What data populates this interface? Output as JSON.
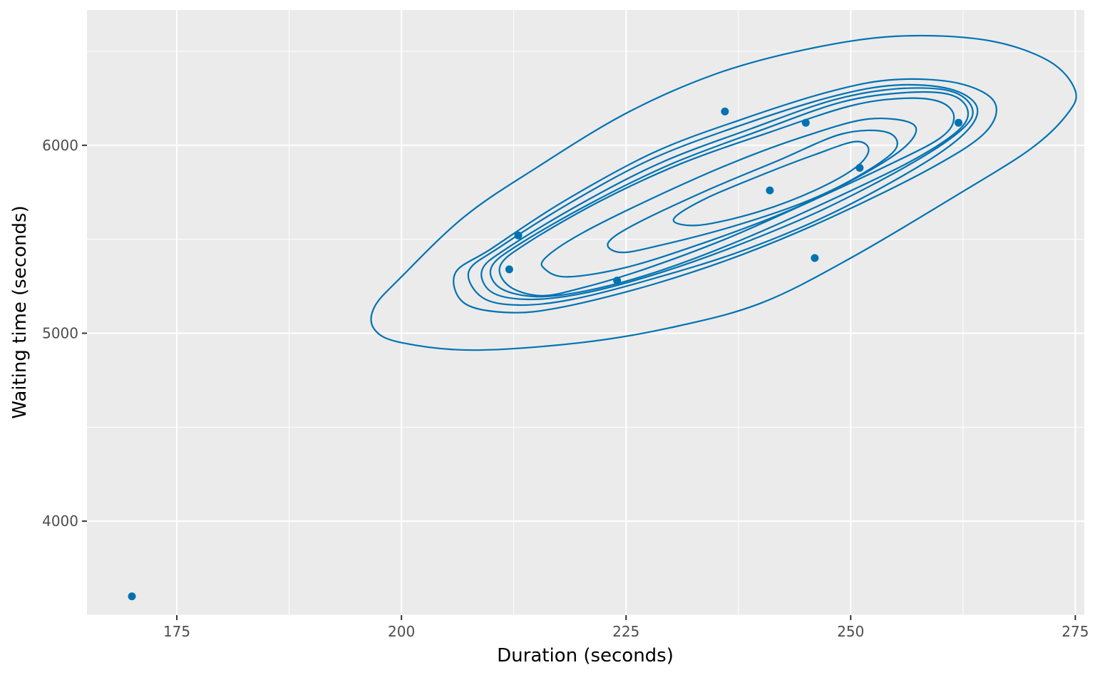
{
  "chart_data": {
    "type": "scatter",
    "subtype": "scatter with 2D density contours",
    "title": "",
    "xlabel": "Duration (seconds)",
    "ylabel": "Waiting time (seconds)",
    "xlim": [
      165,
      276
    ],
    "ylim": [
      3500,
      6720
    ],
    "x_ticks": [
      175,
      200,
      225,
      250,
      275
    ],
    "x_tick_labels": [
      "175",
      "200",
      "225",
      "250",
      "275"
    ],
    "x_minor": [
      187.5,
      212.5,
      237.5,
      262.5
    ],
    "y_ticks": [
      4000,
      5000,
      6000
    ],
    "y_tick_labels": [
      "4000",
      "5000",
      "6000"
    ],
    "y_minor": [
      3500,
      4500,
      5500,
      6500
    ],
    "grid": true,
    "legend": "none",
    "color": "#0072B2",
    "panel_background": "#EBEBEB",
    "points": [
      {
        "x": 170,
        "y": 3600
      },
      {
        "x": 212,
        "y": 5340
      },
      {
        "x": 213,
        "y": 5520
      },
      {
        "x": 224,
        "y": 5280
      },
      {
        "x": 236,
        "y": 6180
      },
      {
        "x": 241,
        "y": 5760
      },
      {
        "x": 245,
        "y": 6120
      },
      {
        "x": 246,
        "y": 5400
      },
      {
        "x": 251,
        "y": 5880
      },
      {
        "x": 262,
        "y": 6120
      }
    ],
    "contours": [
      {
        "level": 1,
        "path": [
          [
            197.0,
            5140
          ],
          [
            200.0,
            5300
          ],
          [
            207.0,
            5620
          ],
          [
            215.0,
            5880
          ],
          [
            225.0,
            6170
          ],
          [
            235.0,
            6380
          ],
          [
            245.0,
            6510
          ],
          [
            255.0,
            6580
          ],
          [
            265.0,
            6560
          ],
          [
            272.0,
            6450
          ],
          [
            275.0,
            6290
          ],
          [
            274.0,
            6160
          ],
          [
            270.0,
            5980
          ],
          [
            262.0,
            5740
          ],
          [
            250.0,
            5400
          ],
          [
            240.0,
            5160
          ],
          [
            230.0,
            5030
          ],
          [
            220.0,
            4950
          ],
          [
            208.0,
            4910
          ],
          [
            200.0,
            4950
          ],
          [
            197.0,
            5020
          ]
        ]
      },
      {
        "level": 2,
        "path": [
          [
            206.0,
            5320
          ],
          [
            210.0,
            5450
          ],
          [
            218.0,
            5700
          ],
          [
            228.0,
            5960
          ],
          [
            238.0,
            6140
          ],
          [
            248.0,
            6290
          ],
          [
            255.0,
            6350
          ],
          [
            262.0,
            6330
          ],
          [
            266.0,
            6230
          ],
          [
            265.0,
            6070
          ],
          [
            259.0,
            5880
          ],
          [
            248.0,
            5620
          ],
          [
            238.0,
            5420
          ],
          [
            228.0,
            5260
          ],
          [
            218.0,
            5140
          ],
          [
            212.0,
            5110
          ],
          [
            207.0,
            5160
          ]
        ]
      },
      {
        "level": 3,
        "path": [
          [
            207.5,
            5330
          ],
          [
            211.0,
            5460
          ],
          [
            219.0,
            5700
          ],
          [
            228.0,
            5930
          ],
          [
            238.0,
            6110
          ],
          [
            248.0,
            6260
          ],
          [
            255.0,
            6320
          ],
          [
            261.0,
            6300
          ],
          [
            264.0,
            6210
          ],
          [
            263.0,
            6080
          ],
          [
            258.0,
            5900
          ],
          [
            248.0,
            5640
          ],
          [
            238.0,
            5440
          ],
          [
            228.0,
            5290
          ],
          [
            219.0,
            5180
          ],
          [
            213.0,
            5150
          ],
          [
            209.0,
            5190
          ]
        ]
      },
      {
        "level": 4,
        "path": [
          [
            209.0,
            5340
          ],
          [
            212.0,
            5460
          ],
          [
            220.0,
            5690
          ],
          [
            229.0,
            5910
          ],
          [
            239.0,
            6090
          ],
          [
            248.0,
            6240
          ],
          [
            255.0,
            6300
          ],
          [
            261.0,
            6290
          ],
          [
            263.5,
            6200
          ],
          [
            262.5,
            6090
          ],
          [
            257.0,
            5910
          ],
          [
            247.0,
            5660
          ],
          [
            237.0,
            5460
          ],
          [
            228.0,
            5310
          ],
          [
            220.0,
            5210
          ],
          [
            214.0,
            5180
          ],
          [
            210.0,
            5220
          ]
        ]
      },
      {
        "level": 5,
        "path": [
          [
            210.0,
            5350
          ],
          [
            213.0,
            5470
          ],
          [
            221.0,
            5690
          ],
          [
            230.0,
            5900
          ],
          [
            240.0,
            6080
          ],
          [
            249.0,
            6230
          ],
          [
            256.0,
            6280
          ],
          [
            261.0,
            6270
          ],
          [
            263.0,
            6190
          ],
          [
            262.0,
            6080
          ],
          [
            256.5,
            5910
          ],
          [
            246.5,
            5680
          ],
          [
            237.0,
            5480
          ],
          [
            228.0,
            5320
          ],
          [
            220.5,
            5225
          ],
          [
            215.0,
            5195
          ],
          [
            211.0,
            5240
          ]
        ]
      },
      {
        "level": 6,
        "path": [
          [
            211.0,
            5360
          ],
          [
            214.0,
            5480
          ],
          [
            222.0,
            5700
          ],
          [
            231.0,
            5900
          ],
          [
            241.0,
            6070
          ],
          [
            250.0,
            6210
          ],
          [
            256.0,
            6250
          ],
          [
            260.0,
            6230
          ],
          [
            261.5,
            6150
          ],
          [
            260.0,
            6040
          ],
          [
            254.0,
            5890
          ],
          [
            245.0,
            5690
          ],
          [
            236.0,
            5500
          ],
          [
            227.0,
            5340
          ],
          [
            220.0,
            5240
          ],
          [
            215.5,
            5200
          ],
          [
            212.0,
            5250
          ]
        ]
      },
      {
        "level": 7,
        "path": [
          [
            216.0,
            5400
          ],
          [
            220.0,
            5530
          ],
          [
            228.0,
            5720
          ],
          [
            237.0,
            5910
          ],
          [
            245.0,
            6050
          ],
          [
            252.0,
            6140
          ],
          [
            257.0,
            6110
          ],
          [
            256.0,
            5990
          ],
          [
            250.0,
            5810
          ],
          [
            242.0,
            5630
          ],
          [
            233.0,
            5470
          ],
          [
            225.0,
            5350
          ],
          [
            218.5,
            5300
          ],
          [
            216.0,
            5340
          ]
        ]
      },
      {
        "level": 8,
        "path": [
          [
            223.0,
            5480
          ],
          [
            226.0,
            5580
          ],
          [
            234.0,
            5760
          ],
          [
            242.0,
            5920
          ],
          [
            249.0,
            6060
          ],
          [
            254.0,
            6070
          ],
          [
            255.0,
            5980
          ],
          [
            251.0,
            5840
          ],
          [
            245.0,
            5700
          ],
          [
            237.0,
            5570
          ],
          [
            229.0,
            5470
          ],
          [
            224.5,
            5430
          ]
        ]
      },
      {
        "level": 9,
        "path": [
          [
            230.5,
            5620
          ],
          [
            234.0,
            5720
          ],
          [
            240.5,
            5850
          ],
          [
            246.0,
            5950
          ],
          [
            250.5,
            6020
          ],
          [
            252.0,
            5975
          ],
          [
            250.5,
            5880
          ],
          [
            246.0,
            5760
          ],
          [
            240.0,
            5650
          ],
          [
            234.0,
            5580
          ],
          [
            231.0,
            5580
          ]
        ]
      }
    ]
  }
}
